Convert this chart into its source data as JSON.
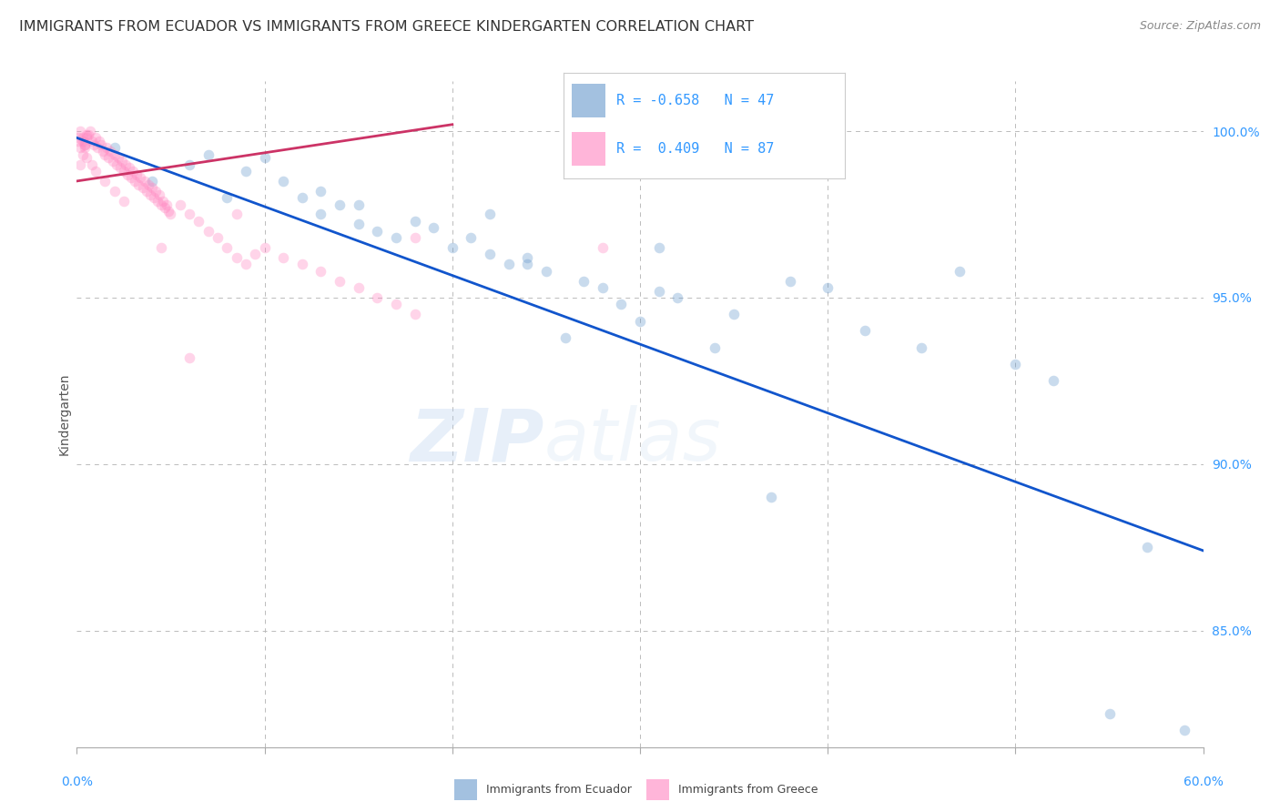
{
  "title": "IMMIGRANTS FROM ECUADOR VS IMMIGRANTS FROM GREECE KINDERGARTEN CORRELATION CHART",
  "source": "Source: ZipAtlas.com",
  "ylabel": "Kindergarten",
  "xlim": [
    0.0,
    0.6
  ],
  "ylim": [
    81.5,
    101.5
  ],
  "blue_R": -0.658,
  "blue_N": 47,
  "pink_R": 0.409,
  "pink_N": 87,
  "legend_label_blue": "Immigrants from Ecuador",
  "legend_label_pink": "Immigrants from Greece",
  "blue_scatter_x": [
    0.02,
    0.04,
    0.06,
    0.08,
    0.1,
    0.11,
    0.12,
    0.13,
    0.14,
    0.15,
    0.16,
    0.17,
    0.18,
    0.19,
    0.2,
    0.21,
    0.22,
    0.23,
    0.24,
    0.25,
    0.27,
    0.28,
    0.29,
    0.3,
    0.31,
    0.32,
    0.35,
    0.38,
    0.4,
    0.42,
    0.45,
    0.47,
    0.5,
    0.52,
    0.55,
    0.57,
    0.22,
    0.24,
    0.26,
    0.15,
    0.13,
    0.09,
    0.07,
    0.31,
    0.34,
    0.37,
    0.59
  ],
  "blue_scatter_y": [
    99.5,
    98.5,
    99.0,
    98.0,
    99.2,
    98.5,
    98.0,
    97.5,
    97.8,
    97.2,
    97.0,
    96.8,
    97.3,
    97.1,
    96.5,
    96.8,
    96.3,
    96.0,
    96.2,
    95.8,
    95.5,
    95.3,
    94.8,
    94.3,
    95.2,
    95.0,
    94.5,
    95.5,
    95.3,
    94.0,
    93.5,
    95.8,
    93.0,
    92.5,
    82.5,
    87.5,
    97.5,
    96.0,
    93.8,
    97.8,
    98.2,
    98.8,
    99.3,
    96.5,
    93.5,
    89.0,
    82.0
  ],
  "pink_scatter_x": [
    0.001,
    0.002,
    0.003,
    0.004,
    0.005,
    0.006,
    0.007,
    0.008,
    0.009,
    0.01,
    0.011,
    0.012,
    0.013,
    0.014,
    0.015,
    0.016,
    0.017,
    0.018,
    0.019,
    0.02,
    0.021,
    0.022,
    0.023,
    0.024,
    0.025,
    0.026,
    0.027,
    0.028,
    0.029,
    0.03,
    0.031,
    0.032,
    0.033,
    0.034,
    0.035,
    0.036,
    0.037,
    0.038,
    0.039,
    0.04,
    0.041,
    0.042,
    0.043,
    0.044,
    0.045,
    0.046,
    0.047,
    0.048,
    0.049,
    0.05,
    0.055,
    0.06,
    0.065,
    0.07,
    0.075,
    0.08,
    0.085,
    0.09,
    0.095,
    0.1,
    0.11,
    0.12,
    0.13,
    0.14,
    0.15,
    0.16,
    0.17,
    0.18,
    0.005,
    0.008,
    0.01,
    0.015,
    0.02,
    0.025,
    0.002,
    0.003,
    0.004,
    0.28,
    0.002,
    0.003,
    0.001,
    0.004,
    0.005,
    0.18,
    0.085,
    0.06,
    0.045
  ],
  "pink_scatter_y": [
    99.8,
    99.5,
    99.7,
    99.6,
    99.8,
    99.9,
    100.0,
    99.7,
    99.6,
    99.8,
    99.5,
    99.7,
    99.6,
    99.4,
    99.3,
    99.5,
    99.2,
    99.4,
    99.1,
    99.3,
    99.0,
    99.2,
    98.9,
    99.1,
    98.8,
    99.0,
    98.7,
    98.9,
    98.6,
    98.8,
    98.5,
    98.7,
    98.4,
    98.6,
    98.3,
    98.5,
    98.2,
    98.4,
    98.1,
    98.3,
    98.0,
    98.2,
    97.9,
    98.1,
    97.8,
    97.9,
    97.7,
    97.8,
    97.6,
    97.5,
    97.8,
    97.5,
    97.3,
    97.0,
    96.8,
    96.5,
    96.2,
    96.0,
    96.3,
    96.5,
    96.2,
    96.0,
    95.8,
    95.5,
    95.3,
    95.0,
    94.8,
    94.5,
    99.2,
    99.0,
    98.8,
    98.5,
    98.2,
    97.9,
    100.0,
    99.8,
    99.5,
    96.5,
    99.0,
    99.3,
    99.7,
    99.6,
    99.9,
    96.8,
    97.5,
    93.2,
    96.5
  ],
  "blue_line_x": [
    0.0,
    0.6
  ],
  "blue_line_y": [
    99.8,
    87.4
  ],
  "pink_line_x": [
    0.0,
    0.2
  ],
  "pink_line_y": [
    98.5,
    100.2
  ],
  "blue_color": "#6699CC",
  "pink_color": "#FF85C0",
  "blue_line_color": "#1155CC",
  "pink_line_color": "#CC3366",
  "watermark_zip": "ZIP",
  "watermark_atlas": "atlas",
  "background_color": "#FFFFFF",
  "grid_color": "#BBBBBB",
  "title_color": "#333333",
  "axis_tick_color": "#3399FF",
  "marker_size": 70,
  "marker_alpha": 0.35,
  "title_fontsize": 11.5,
  "source_fontsize": 9,
  "ytick_positions": [
    85.0,
    90.0,
    95.0,
    100.0
  ],
  "ytick_labels": [
    "85.0%",
    "90.0%",
    "95.0%",
    "100.0%"
  ],
  "xtick_positions": [
    0.0,
    0.1,
    0.2,
    0.3,
    0.4,
    0.5,
    0.6
  ]
}
